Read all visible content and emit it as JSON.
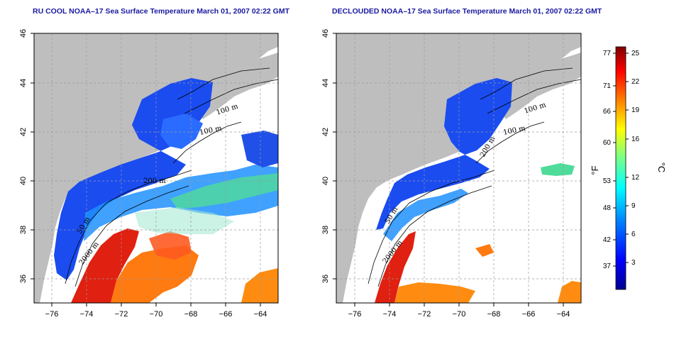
{
  "titles": {
    "left": "RU COOL NOAA–17 Sea Surface Temperature March 01, 2007 02:22 GMT",
    "right": "DECLOUDED NOAA–17 Sea Surface Temperature March 01, 2007 02:22 GMT"
  },
  "x_ticks": [
    "−76",
    "−74",
    "−72",
    "−70",
    "−68",
    "−66",
    "−64"
  ],
  "y_ticks": [
    "46",
    "44",
    "42",
    "40",
    "38",
    "36"
  ],
  "contour_labels": {
    "left": [
      "100 m",
      "100 m",
      "200 m",
      "50 m",
      "2000 m"
    ],
    "right": [
      "100 m",
      "100 m",
      "200 m",
      "50 m",
      "2000 m"
    ]
  },
  "colorbar": {
    "fahrenheit_ticks": [
      "77",
      "71",
      "66",
      "60",
      "53",
      "48",
      "42",
      "37"
    ],
    "celsius_ticks": [
      "25",
      "22",
      "19",
      "16",
      "12",
      "9",
      "6",
      "3"
    ],
    "fahrenheit_unit": "°F",
    "celsius_unit": "°C",
    "stops": [
      "#00008f",
      "#0000ff",
      "#0080ff",
      "#00ffff",
      "#80ff80",
      "#ffff00",
      "#ff8000",
      "#ff0000",
      "#800000"
    ]
  },
  "colors": {
    "land": "#bebebe",
    "no_data": "#ffffff",
    "grid": "#9a9a9a",
    "title": "#1a1aa0"
  }
}
